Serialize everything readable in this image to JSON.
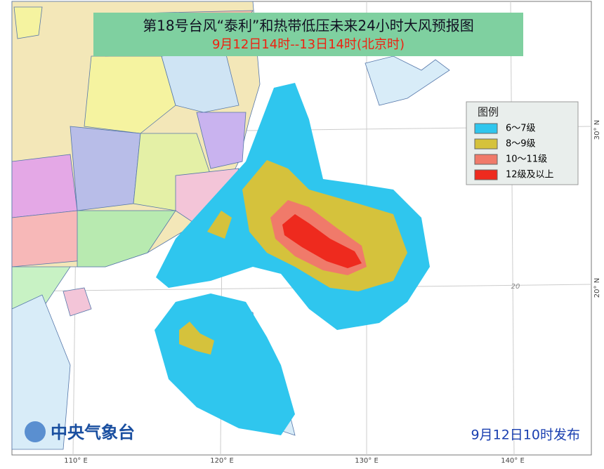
{
  "header": {
    "title": "第18号台风“泰利”和热带低压未来24小时大风预报图",
    "subtitle": "9月12日14时--13日14时(北京时)"
  },
  "legend": {
    "title": "图例",
    "items": [
      "6～7级",
      "8～9级",
      "10～11级",
      "12级及以上"
    ]
  },
  "footer": {
    "agency": "中央气象台",
    "issued": "9月12日10时发布"
  },
  "axes": {
    "longitude": [
      "110° E",
      "120° E",
      "130° E",
      "140° E"
    ],
    "latitude": [
      "30° N",
      "20° N"
    ],
    "grid_label": "20"
  }
}
